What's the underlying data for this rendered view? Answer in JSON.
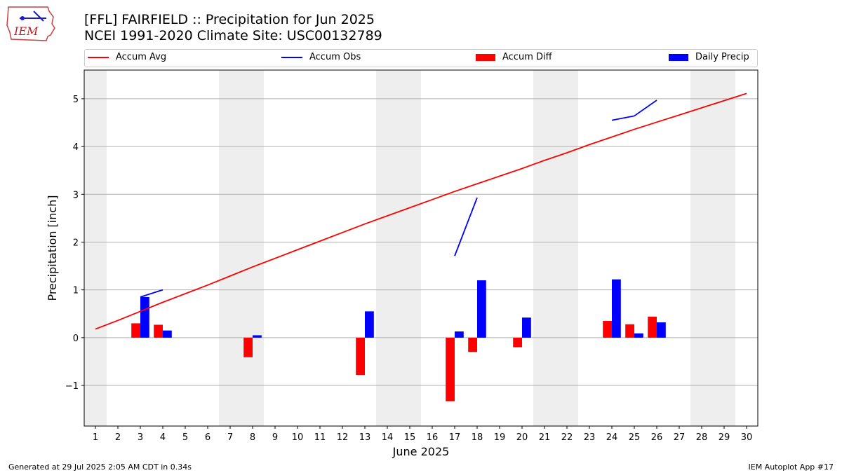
{
  "logo": {
    "text": "IEM"
  },
  "footer": {
    "left": "Generated at 29 Jul 2025 2:05 AM CDT in 0.34s",
    "right": "IEM Autoplot App #17"
  },
  "colors": {
    "accum_avg": "#ff0000",
    "accum_obs": "#0000ff",
    "accum_diff": "#ff0000",
    "daily_precip": "#0000ff",
    "weekend_shade": "#eeeeee",
    "grid": "#b0b0b0"
  },
  "chart_data": {
    "type": "bar",
    "title": "[FFL] FAIRFIELD :: Precipitation for Jun 2025",
    "subtitle": "NCEI 1991-2020 Climate Site: USC00132789",
    "xlabel": "June 2025",
    "ylabel": "Precipitation [inch]",
    "ylim": [
      -1.85,
      5.6
    ],
    "yticks": [
      -1,
      0,
      1,
      2,
      3,
      4,
      5
    ],
    "ytick_labels": [
      "−1",
      "0",
      "1",
      "2",
      "3",
      "4",
      "5"
    ],
    "grid": true,
    "legend_position": "top",
    "x": [
      1,
      2,
      3,
      4,
      5,
      6,
      7,
      8,
      9,
      10,
      11,
      12,
      13,
      14,
      15,
      16,
      17,
      18,
      19,
      20,
      21,
      22,
      23,
      24,
      25,
      26,
      27,
      28,
      29,
      30
    ],
    "xtick_labels": [
      "1",
      "2",
      "3",
      "4",
      "5",
      "6",
      "7",
      "8",
      "9",
      "10",
      "11",
      "12",
      "13",
      "14",
      "15",
      "16",
      "17",
      "18",
      "19",
      "20",
      "21",
      "22",
      "23",
      "24",
      "25",
      "26",
      "27",
      "28",
      "29",
      "30"
    ],
    "weekend_days": [
      1,
      7,
      8,
      14,
      15,
      21,
      22,
      28,
      29
    ],
    "series": [
      {
        "name": "Accum Avg",
        "kind": "line",
        "values": [
          0.18,
          0.36,
          0.55,
          0.74,
          0.92,
          1.1,
          1.29,
          1.48,
          1.66,
          1.84,
          2.02,
          2.2,
          2.38,
          2.55,
          2.72,
          2.89,
          3.06,
          3.22,
          3.38,
          3.54,
          3.71,
          3.87,
          4.04,
          4.2,
          4.36,
          4.51,
          4.66,
          4.81,
          4.96,
          5.11
        ]
      },
      {
        "name": "Accum Obs",
        "kind": "line",
        "values": [
          null,
          null,
          0.85,
          1.0,
          null,
          null,
          null,
          null,
          null,
          null,
          null,
          null,
          null,
          null,
          null,
          null,
          1.71,
          2.93,
          null,
          null,
          null,
          null,
          null,
          4.55,
          4.64,
          4.97,
          null,
          null,
          null,
          null
        ]
      },
      {
        "name": "Accum Diff",
        "kind": "bar",
        "values": [
          null,
          null,
          0.3,
          0.27,
          null,
          null,
          null,
          -0.41,
          null,
          null,
          null,
          null,
          -0.78,
          null,
          null,
          null,
          -1.33,
          -0.3,
          null,
          -0.2,
          null,
          null,
          null,
          0.35,
          0.28,
          0.44,
          null,
          null,
          null,
          null
        ]
      },
      {
        "name": "Daily Precip",
        "kind": "bar",
        "values": [
          null,
          null,
          0.85,
          0.15,
          null,
          null,
          null,
          0.05,
          null,
          null,
          null,
          null,
          0.55,
          null,
          null,
          null,
          0.13,
          1.2,
          null,
          0.42,
          null,
          null,
          null,
          1.22,
          0.09,
          0.32,
          null,
          null,
          null,
          null
        ]
      }
    ]
  }
}
